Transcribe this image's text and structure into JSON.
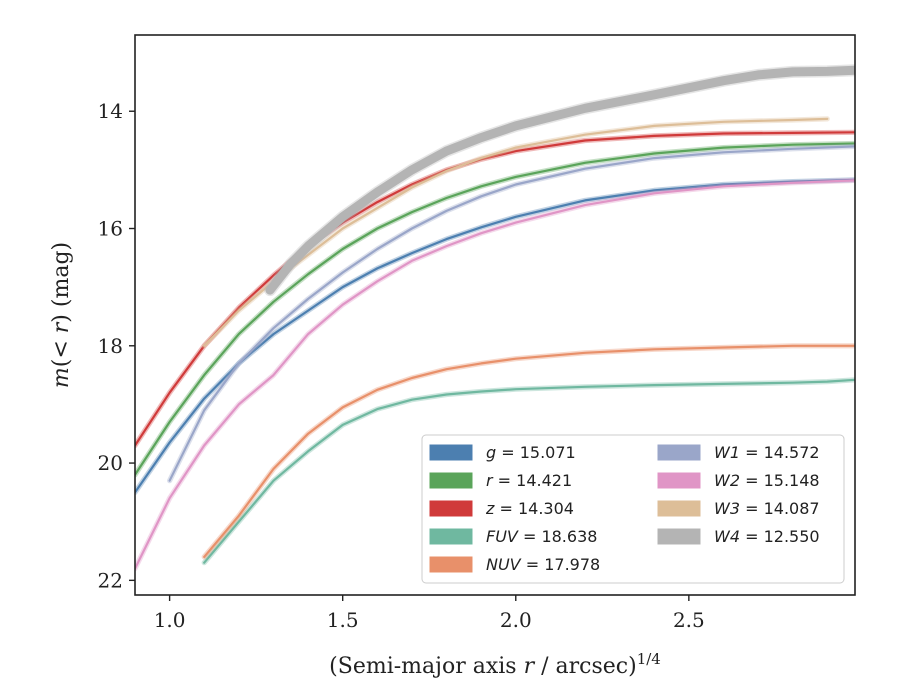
{
  "chart_data": {
    "type": "line",
    "title": "",
    "xlabel": "(Semi-major axis r / arcsec)^1/4",
    "xlabel_parts": {
      "open": "(Semi-major axis ",
      "var": "r",
      "mid": " / arcsec)",
      "sup": "1/4"
    },
    "ylabel": "m(< r) (mag)",
    "ylabel_parts": {
      "var": "m",
      "mid": "(< ",
      "var2": "r",
      "end": ") (mag)"
    },
    "xlim": [
      0.9,
      2.98
    ],
    "ylim": [
      22.25,
      12.7
    ],
    "y_inverted": true,
    "x_ticks": [
      "1.0",
      "1.5",
      "2.0",
      "2.5"
    ],
    "y_ticks": [
      "14",
      "16",
      "18",
      "20",
      "22"
    ],
    "grid": false,
    "legend_placement": "lower-right",
    "series": [
      {
        "name": "g",
        "legend": "g = 15.071",
        "color": "#4c7fb0",
        "x": [
          0.9,
          1.0,
          1.1,
          1.2,
          1.3,
          1.4,
          1.5,
          1.6,
          1.7,
          1.8,
          1.9,
          2.0,
          2.2,
          2.4,
          2.6,
          2.8,
          2.98
        ],
        "y": [
          20.5,
          19.65,
          18.9,
          18.3,
          17.8,
          17.4,
          17.0,
          16.68,
          16.42,
          16.18,
          15.98,
          15.8,
          15.52,
          15.35,
          15.25,
          15.2,
          15.17
        ]
      },
      {
        "name": "r",
        "legend": "r = 14.421",
        "color": "#5aa45a",
        "x": [
          0.9,
          1.0,
          1.1,
          1.2,
          1.3,
          1.4,
          1.5,
          1.6,
          1.7,
          1.8,
          1.9,
          2.0,
          2.2,
          2.4,
          2.6,
          2.8,
          2.98
        ],
        "y": [
          20.2,
          19.3,
          18.5,
          17.8,
          17.25,
          16.78,
          16.35,
          16.0,
          15.72,
          15.48,
          15.28,
          15.12,
          14.88,
          14.72,
          14.62,
          14.57,
          14.55
        ]
      },
      {
        "name": "z",
        "legend": "z = 14.304",
        "color": "#d03a3a",
        "x": [
          0.9,
          1.0,
          1.1,
          1.2,
          1.3,
          1.4,
          1.5,
          1.6,
          1.7,
          1.8,
          1.9,
          2.0,
          2.2,
          2.4,
          2.6,
          2.8,
          2.98
        ],
        "y": [
          19.7,
          18.8,
          18.0,
          17.35,
          16.8,
          16.3,
          15.9,
          15.55,
          15.25,
          15.0,
          14.82,
          14.68,
          14.5,
          14.42,
          14.38,
          14.37,
          14.36
        ]
      },
      {
        "name": "FUV",
        "legend": "FUV = 18.638",
        "color": "#6fb8a0",
        "x": [
          1.1,
          1.2,
          1.3,
          1.4,
          1.5,
          1.6,
          1.7,
          1.8,
          1.9,
          2.0,
          2.2,
          2.4,
          2.6,
          2.8,
          2.9,
          2.98
        ],
        "y": [
          21.7,
          21.0,
          20.3,
          19.8,
          19.35,
          19.08,
          18.92,
          18.83,
          18.78,
          18.74,
          18.7,
          18.67,
          18.65,
          18.63,
          18.61,
          18.58
        ]
      },
      {
        "name": "NUV",
        "legend": "NUV = 17.978",
        "color": "#e8906a",
        "x": [
          1.1,
          1.2,
          1.3,
          1.4,
          1.5,
          1.6,
          1.7,
          1.8,
          1.9,
          2.0,
          2.2,
          2.4,
          2.6,
          2.8,
          2.9,
          2.98
        ],
        "y": [
          21.6,
          20.9,
          20.1,
          19.5,
          19.05,
          18.75,
          18.55,
          18.4,
          18.3,
          18.22,
          18.12,
          18.06,
          18.03,
          18.0,
          18.0,
          18.0
        ]
      },
      {
        "name": "W1",
        "legend": "W1 = 14.572",
        "color": "#9aa6c9",
        "x": [
          1.0,
          1.1,
          1.2,
          1.3,
          1.4,
          1.5,
          1.6,
          1.7,
          1.8,
          1.9,
          2.0,
          2.2,
          2.4,
          2.6,
          2.8,
          2.98
        ],
        "y": [
          20.3,
          19.1,
          18.3,
          17.7,
          17.2,
          16.75,
          16.35,
          16.0,
          15.7,
          15.45,
          15.25,
          14.98,
          14.8,
          14.7,
          14.64,
          14.6
        ]
      },
      {
        "name": "W2",
        "legend": "W2 = 15.148",
        "color": "#e095c6",
        "x": [
          0.9,
          1.0,
          1.1,
          1.2,
          1.3,
          1.4,
          1.5,
          1.6,
          1.7,
          1.8,
          1.9,
          2.0,
          2.2,
          2.4,
          2.6,
          2.8,
          2.98
        ],
        "y": [
          21.8,
          20.6,
          19.7,
          19.0,
          18.5,
          17.8,
          17.3,
          16.9,
          16.55,
          16.3,
          16.08,
          15.9,
          15.6,
          15.4,
          15.28,
          15.22,
          15.18
        ]
      },
      {
        "name": "W3",
        "legend": "W3 = 14.087",
        "color": "#ddbe98",
        "x": [
          1.1,
          1.2,
          1.3,
          1.4,
          1.5,
          1.6,
          1.7,
          1.8,
          1.9,
          2.0,
          2.2,
          2.4,
          2.6,
          2.8,
          2.9
        ],
        "y": [
          18.0,
          17.4,
          16.9,
          16.45,
          16.0,
          15.65,
          15.3,
          15.02,
          14.8,
          14.62,
          14.4,
          14.25,
          14.18,
          14.15,
          14.13
        ]
      },
      {
        "name": "W4",
        "legend": "W4 = 12.550",
        "color": "#b4b4b4",
        "x": [
          1.29,
          1.35,
          1.4,
          1.5,
          1.6,
          1.7,
          1.8,
          1.9,
          2.0,
          2.2,
          2.4,
          2.6,
          2.7,
          2.8,
          2.9,
          2.98
        ],
        "y": [
          17.05,
          16.6,
          16.3,
          15.8,
          15.38,
          15.0,
          14.68,
          14.45,
          14.25,
          13.95,
          13.72,
          13.48,
          13.38,
          13.33,
          13.32,
          13.3
        ]
      }
    ]
  }
}
